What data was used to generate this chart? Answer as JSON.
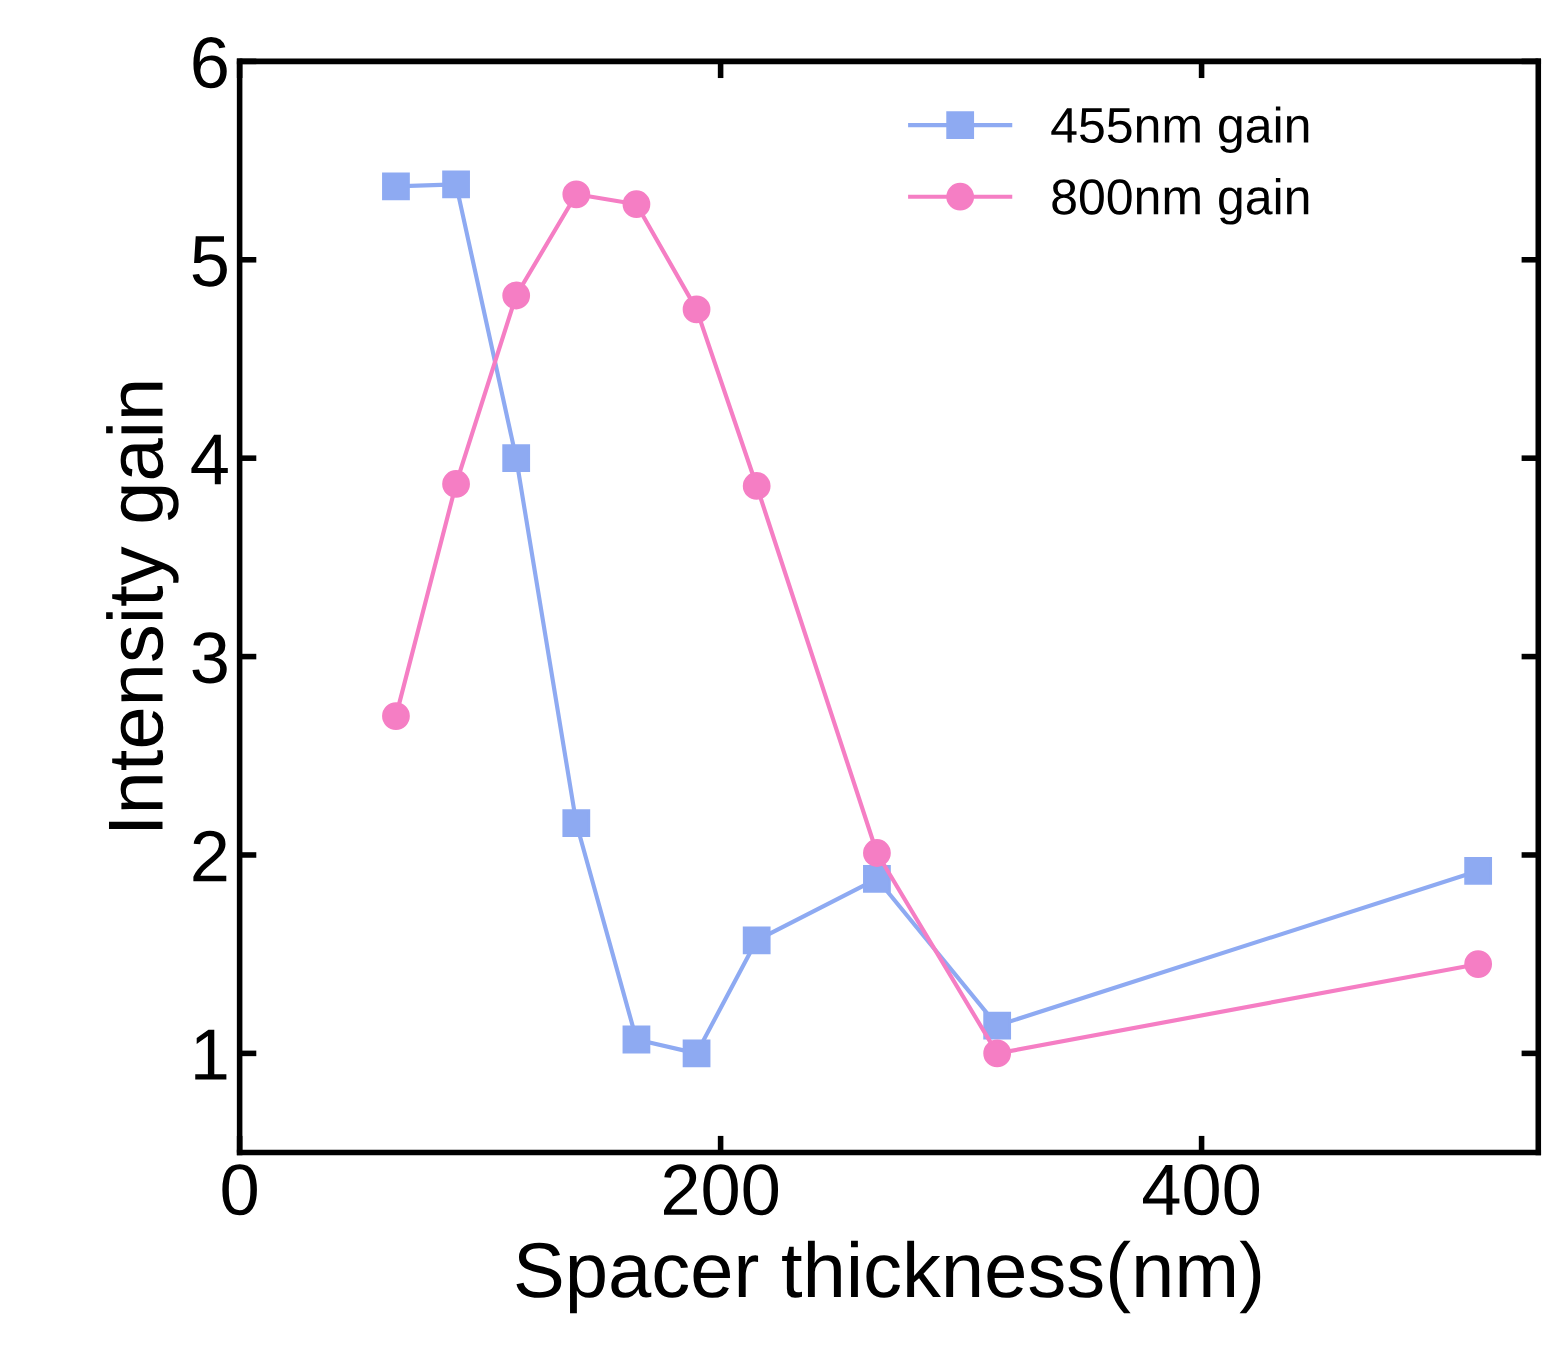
{
  "chart_data": {
    "type": "line",
    "xlabel": "Spacer thickness(nm)",
    "ylabel": "Intensity gain",
    "x": [
      65,
      90,
      115,
      140,
      165,
      190,
      215,
      265,
      315,
      515
    ],
    "series": [
      {
        "name": "455nm gain",
        "color": "#8eaaf2",
        "marker": "square",
        "values": [
          5.37,
          5.38,
          4.0,
          2.16,
          1.07,
          1.0,
          1.57,
          1.88,
          1.14,
          1.92
        ]
      },
      {
        "name": "800nm gain",
        "color": "#f57ec4",
        "marker": "circle",
        "values": [
          2.7,
          3.87,
          4.82,
          5.33,
          5.28,
          4.75,
          3.86,
          2.01,
          1.0,
          1.45
        ]
      }
    ],
    "xlim": [
      0,
      540
    ],
    "xticks": [
      0,
      200,
      400
    ],
    "ylim": [
      0.5,
      6
    ],
    "yticks": [
      1,
      2,
      3,
      4,
      5,
      6
    ],
    "grid": false,
    "legend": "top right",
    "line_style": "solid"
  }
}
